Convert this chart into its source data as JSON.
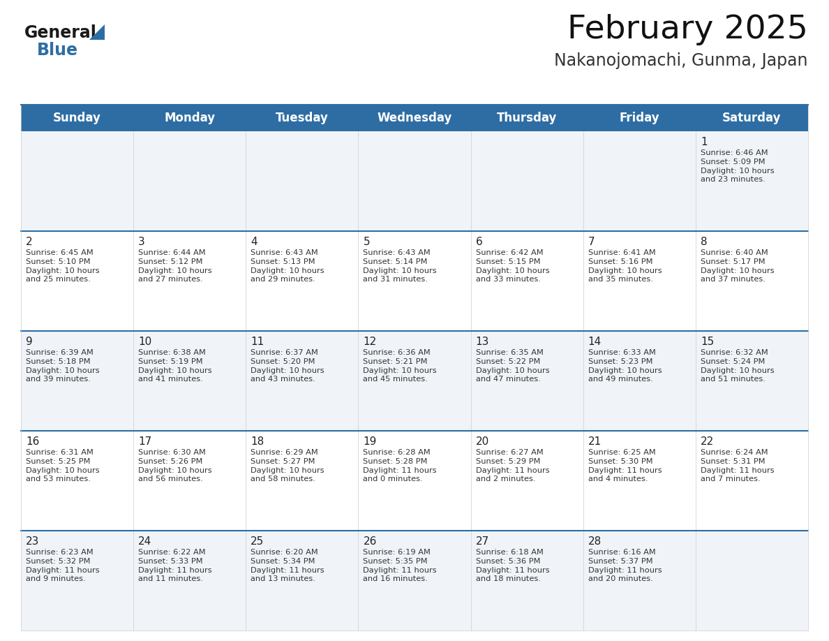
{
  "title": "February 2025",
  "subtitle": "Nakanojomachi, Gunma, Japan",
  "header_color": "#2e6da4",
  "header_text_color": "#ffffff",
  "cell_bg_even": "#f0f4f8",
  "cell_bg_odd": "#ffffff",
  "border_color": "#2e6da4",
  "row_divider_color": "#2e6da4",
  "days_of_week": [
    "Sunday",
    "Monday",
    "Tuesday",
    "Wednesday",
    "Thursday",
    "Friday",
    "Saturday"
  ],
  "title_fontsize": 34,
  "subtitle_fontsize": 17,
  "header_fontsize": 12,
  "day_num_fontsize": 11,
  "info_fontsize": 8.2,
  "logo_text1": "General",
  "logo_text2": "Blue",
  "logo_color1": "#1a1a1a",
  "logo_color2": "#2e6da4",
  "triangle_color": "#2e6da4",
  "calendar_data": [
    [
      null,
      null,
      null,
      null,
      null,
      null,
      {
        "day": 1,
        "sunrise": "6:46 AM",
        "sunset": "5:09 PM",
        "daylight": "10 hours\nand 23 minutes."
      }
    ],
    [
      {
        "day": 2,
        "sunrise": "6:45 AM",
        "sunset": "5:10 PM",
        "daylight": "10 hours\nand 25 minutes."
      },
      {
        "day": 3,
        "sunrise": "6:44 AM",
        "sunset": "5:12 PM",
        "daylight": "10 hours\nand 27 minutes."
      },
      {
        "day": 4,
        "sunrise": "6:43 AM",
        "sunset": "5:13 PM",
        "daylight": "10 hours\nand 29 minutes."
      },
      {
        "day": 5,
        "sunrise": "6:43 AM",
        "sunset": "5:14 PM",
        "daylight": "10 hours\nand 31 minutes."
      },
      {
        "day": 6,
        "sunrise": "6:42 AM",
        "sunset": "5:15 PM",
        "daylight": "10 hours\nand 33 minutes."
      },
      {
        "day": 7,
        "sunrise": "6:41 AM",
        "sunset": "5:16 PM",
        "daylight": "10 hours\nand 35 minutes."
      },
      {
        "day": 8,
        "sunrise": "6:40 AM",
        "sunset": "5:17 PM",
        "daylight": "10 hours\nand 37 minutes."
      }
    ],
    [
      {
        "day": 9,
        "sunrise": "6:39 AM",
        "sunset": "5:18 PM",
        "daylight": "10 hours\nand 39 minutes."
      },
      {
        "day": 10,
        "sunrise": "6:38 AM",
        "sunset": "5:19 PM",
        "daylight": "10 hours\nand 41 minutes."
      },
      {
        "day": 11,
        "sunrise": "6:37 AM",
        "sunset": "5:20 PM",
        "daylight": "10 hours\nand 43 minutes."
      },
      {
        "day": 12,
        "sunrise": "6:36 AM",
        "sunset": "5:21 PM",
        "daylight": "10 hours\nand 45 minutes."
      },
      {
        "day": 13,
        "sunrise": "6:35 AM",
        "sunset": "5:22 PM",
        "daylight": "10 hours\nand 47 minutes."
      },
      {
        "day": 14,
        "sunrise": "6:33 AM",
        "sunset": "5:23 PM",
        "daylight": "10 hours\nand 49 minutes."
      },
      {
        "day": 15,
        "sunrise": "6:32 AM",
        "sunset": "5:24 PM",
        "daylight": "10 hours\nand 51 minutes."
      }
    ],
    [
      {
        "day": 16,
        "sunrise": "6:31 AM",
        "sunset": "5:25 PM",
        "daylight": "10 hours\nand 53 minutes."
      },
      {
        "day": 17,
        "sunrise": "6:30 AM",
        "sunset": "5:26 PM",
        "daylight": "10 hours\nand 56 minutes."
      },
      {
        "day": 18,
        "sunrise": "6:29 AM",
        "sunset": "5:27 PM",
        "daylight": "10 hours\nand 58 minutes."
      },
      {
        "day": 19,
        "sunrise": "6:28 AM",
        "sunset": "5:28 PM",
        "daylight": "11 hours\nand 0 minutes."
      },
      {
        "day": 20,
        "sunrise": "6:27 AM",
        "sunset": "5:29 PM",
        "daylight": "11 hours\nand 2 minutes."
      },
      {
        "day": 21,
        "sunrise": "6:25 AM",
        "sunset": "5:30 PM",
        "daylight": "11 hours\nand 4 minutes."
      },
      {
        "day": 22,
        "sunrise": "6:24 AM",
        "sunset": "5:31 PM",
        "daylight": "11 hours\nand 7 minutes."
      }
    ],
    [
      {
        "day": 23,
        "sunrise": "6:23 AM",
        "sunset": "5:32 PM",
        "daylight": "11 hours\nand 9 minutes."
      },
      {
        "day": 24,
        "sunrise": "6:22 AM",
        "sunset": "5:33 PM",
        "daylight": "11 hours\nand 11 minutes."
      },
      {
        "day": 25,
        "sunrise": "6:20 AM",
        "sunset": "5:34 PM",
        "daylight": "11 hours\nand 13 minutes."
      },
      {
        "day": 26,
        "sunrise": "6:19 AM",
        "sunset": "5:35 PM",
        "daylight": "11 hours\nand 16 minutes."
      },
      {
        "day": 27,
        "sunrise": "6:18 AM",
        "sunset": "5:36 PM",
        "daylight": "11 hours\nand 18 minutes."
      },
      {
        "day": 28,
        "sunrise": "6:16 AM",
        "sunset": "5:37 PM",
        "daylight": "11 hours\nand 20 minutes."
      },
      null
    ]
  ]
}
